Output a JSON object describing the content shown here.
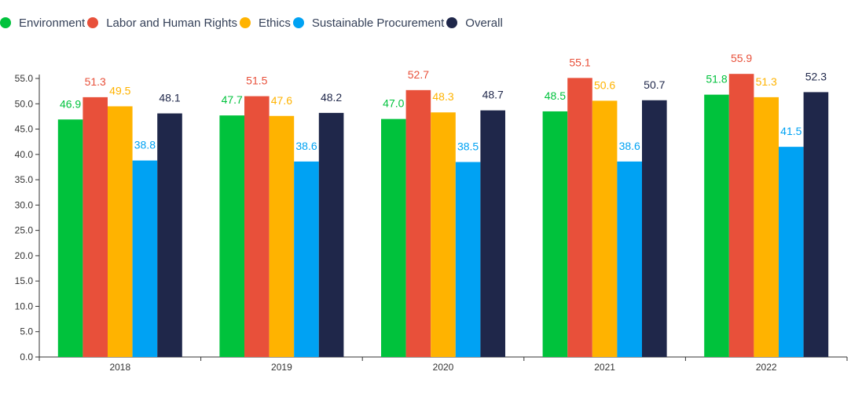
{
  "legend": [
    {
      "label": "Environment",
      "color": "#00c23c"
    },
    {
      "label": "Labor and Human Rights",
      "color": "#e8503a"
    },
    {
      "label": "Ethics",
      "color": "#ffb300"
    },
    {
      "label": "Sustainable Procurement",
      "color": "#00a2f3"
    },
    {
      "label": "Overall",
      "color": "#1f274a"
    }
  ],
  "chart_data": {
    "type": "bar",
    "categories": [
      "2018",
      "2019",
      "2020",
      "2021",
      "2022"
    ],
    "series": [
      {
        "name": "Environment",
        "color": "#00c23c",
        "values": [
          46.9,
          47.7,
          47.0,
          48.5,
          51.8
        ]
      },
      {
        "name": "Labor and Human Rights",
        "color": "#e8503a",
        "values": [
          51.3,
          51.5,
          52.7,
          55.1,
          55.9
        ]
      },
      {
        "name": "Ethics",
        "color": "#ffb300",
        "values": [
          49.5,
          47.6,
          48.3,
          50.6,
          51.3
        ]
      },
      {
        "name": "Sustainable Procurement",
        "color": "#00a2f3",
        "values": [
          38.8,
          38.6,
          38.5,
          38.6,
          41.5
        ]
      },
      {
        "name": "Overall",
        "color": "#1f274a",
        "values": [
          48.1,
          48.2,
          48.7,
          50.7,
          52.3
        ]
      }
    ],
    "yticks": [
      "0.0",
      "5.0",
      "10.0",
      "15.0",
      "20.0",
      "25.0",
      "30.0",
      "35.0",
      "40.0",
      "45.0",
      "50.0",
      "55.0"
    ],
    "ylim": [
      0,
      55
    ],
    "xlabel": "",
    "ylabel": "",
    "title": "",
    "grid": false,
    "legend_position": "top-left",
    "data_labels": true
  }
}
